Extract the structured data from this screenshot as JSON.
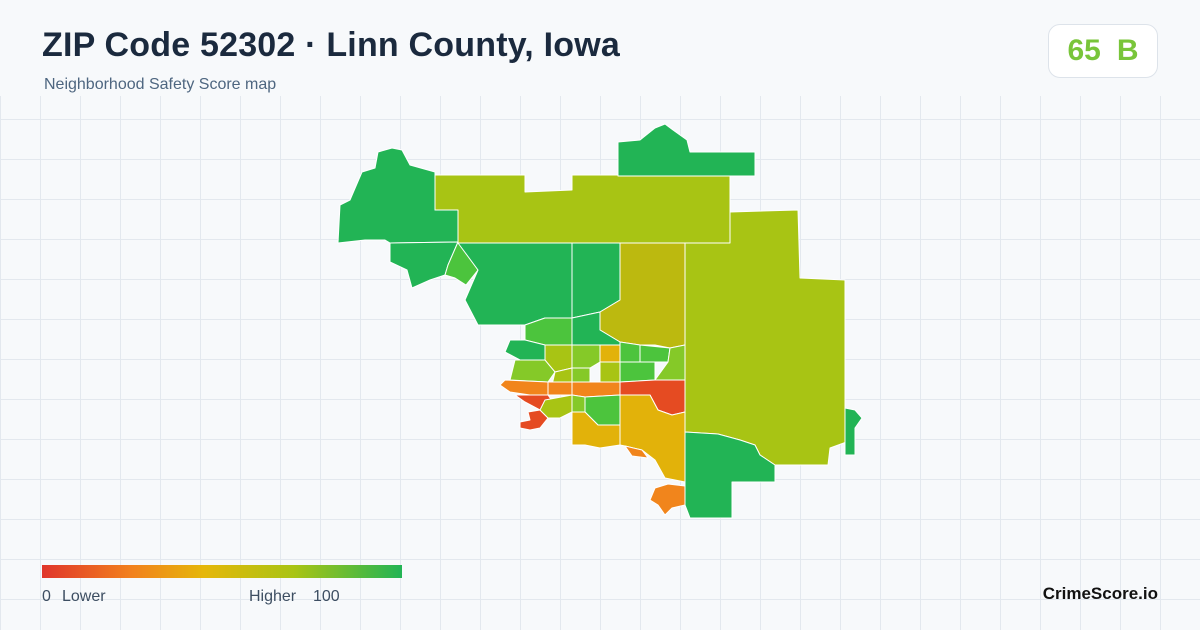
{
  "header": {
    "title": "ZIP Code 52302 · Linn County, Iowa",
    "subtitle": "Neighborhood Safety Score map"
  },
  "score": {
    "value": "65",
    "grade": "B",
    "color": "#79c53a"
  },
  "legend": {
    "min_label": "0",
    "low_label": "Lower",
    "high_label": "Higher",
    "max_label": "100",
    "colors": [
      "#e0352b",
      "#f2811d",
      "#e5b70a",
      "#a9c414",
      "#22b455"
    ]
  },
  "brand": {
    "name": "CrimeScore.io"
  },
  "map": {
    "palette": {
      "very_high": "#22b455",
      "high": "#4cc43d",
      "medium_high": "#85c928",
      "medium": "#a8c414",
      "medium_low": "#bcb90f",
      "low": "#e2b20a",
      "very_low": "#f1851c",
      "lowest": "#e54b22"
    }
  }
}
